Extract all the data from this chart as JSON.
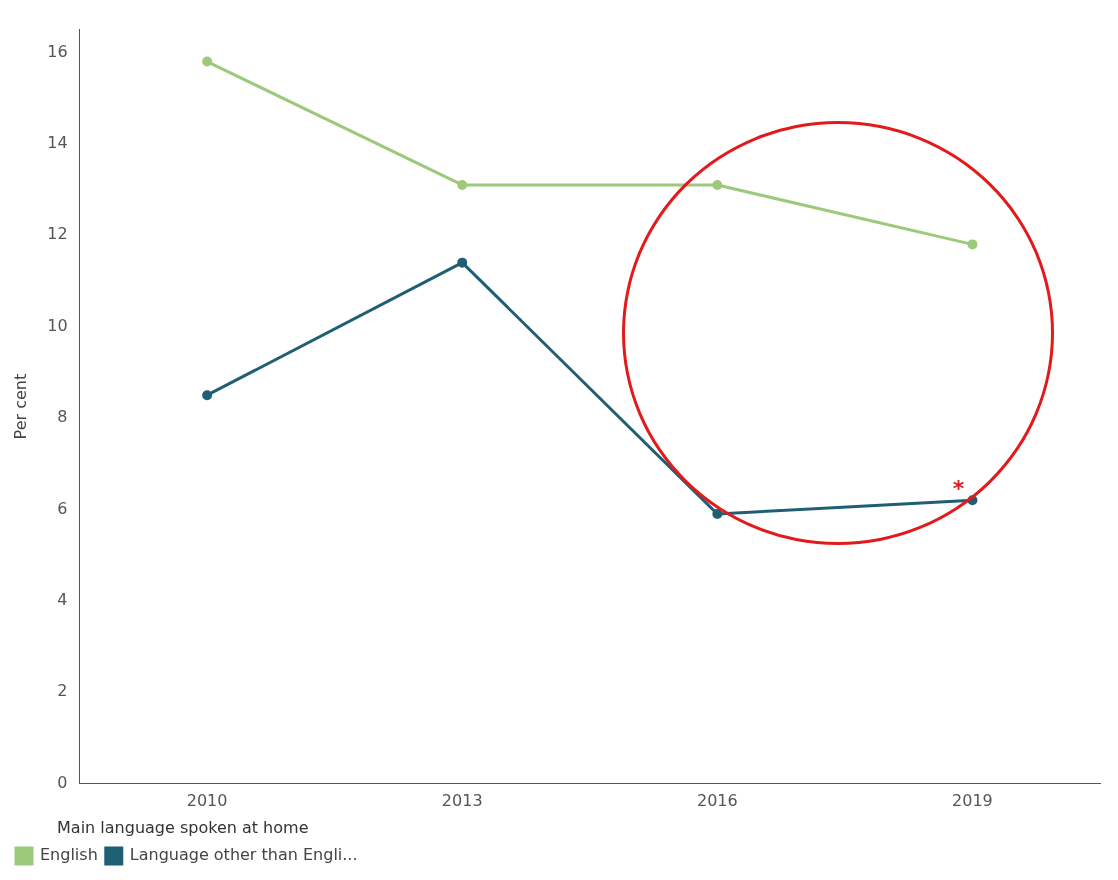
{
  "chart_data": {
    "type": "line",
    "categories": [
      "2010",
      "2013",
      "2016",
      "2019"
    ],
    "series": [
      {
        "name": "English",
        "color": "#9dc97a",
        "values": [
          15.8,
          13.1,
          13.1,
          11.8
        ]
      },
      {
        "name": "Language other than Engli...",
        "color": "#1f5f73",
        "values": [
          8.5,
          11.4,
          5.9,
          6.2
        ]
      }
    ],
    "ylabel": "Per cent",
    "ylim": [
      0,
      16.5
    ],
    "yticks": [
      0,
      2,
      4,
      6,
      8,
      10,
      12,
      14,
      16
    ],
    "grid": false,
    "legend": "bottom",
    "legend_title": "Main language spoken at home",
    "marker": "circle",
    "line_style": "solid",
    "annotations": [
      {
        "text": "*",
        "x": "2019",
        "y": 6.2
      }
    ]
  }
}
